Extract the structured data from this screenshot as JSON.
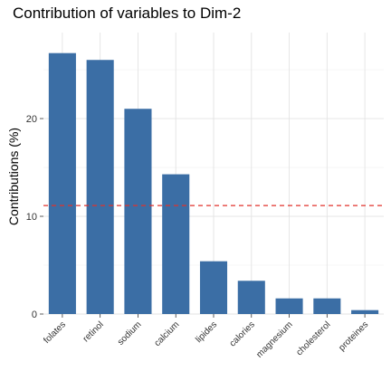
{
  "chart_data": {
    "type": "bar",
    "title": "Contribution of variables to Dim-2",
    "xlabel": "",
    "ylabel": "Contributions (%)",
    "categories": [
      "folates",
      "retinol",
      "sodium",
      "calcium",
      "lipides",
      "calories",
      "magnesium",
      "cholesterol",
      "proteines"
    ],
    "values": [
      26.7,
      26.0,
      21.0,
      14.3,
      5.4,
      3.4,
      1.6,
      1.6,
      0.4
    ],
    "ylim": [
      0,
      28.8
    ],
    "yticks": [
      0,
      10,
      20
    ],
    "ytick_labels": [
      "0",
      "10",
      "20"
    ],
    "reference_line": 11.1,
    "bar_color": "#3b6ea5",
    "reference_color": "#e0312b",
    "grid": true
  }
}
